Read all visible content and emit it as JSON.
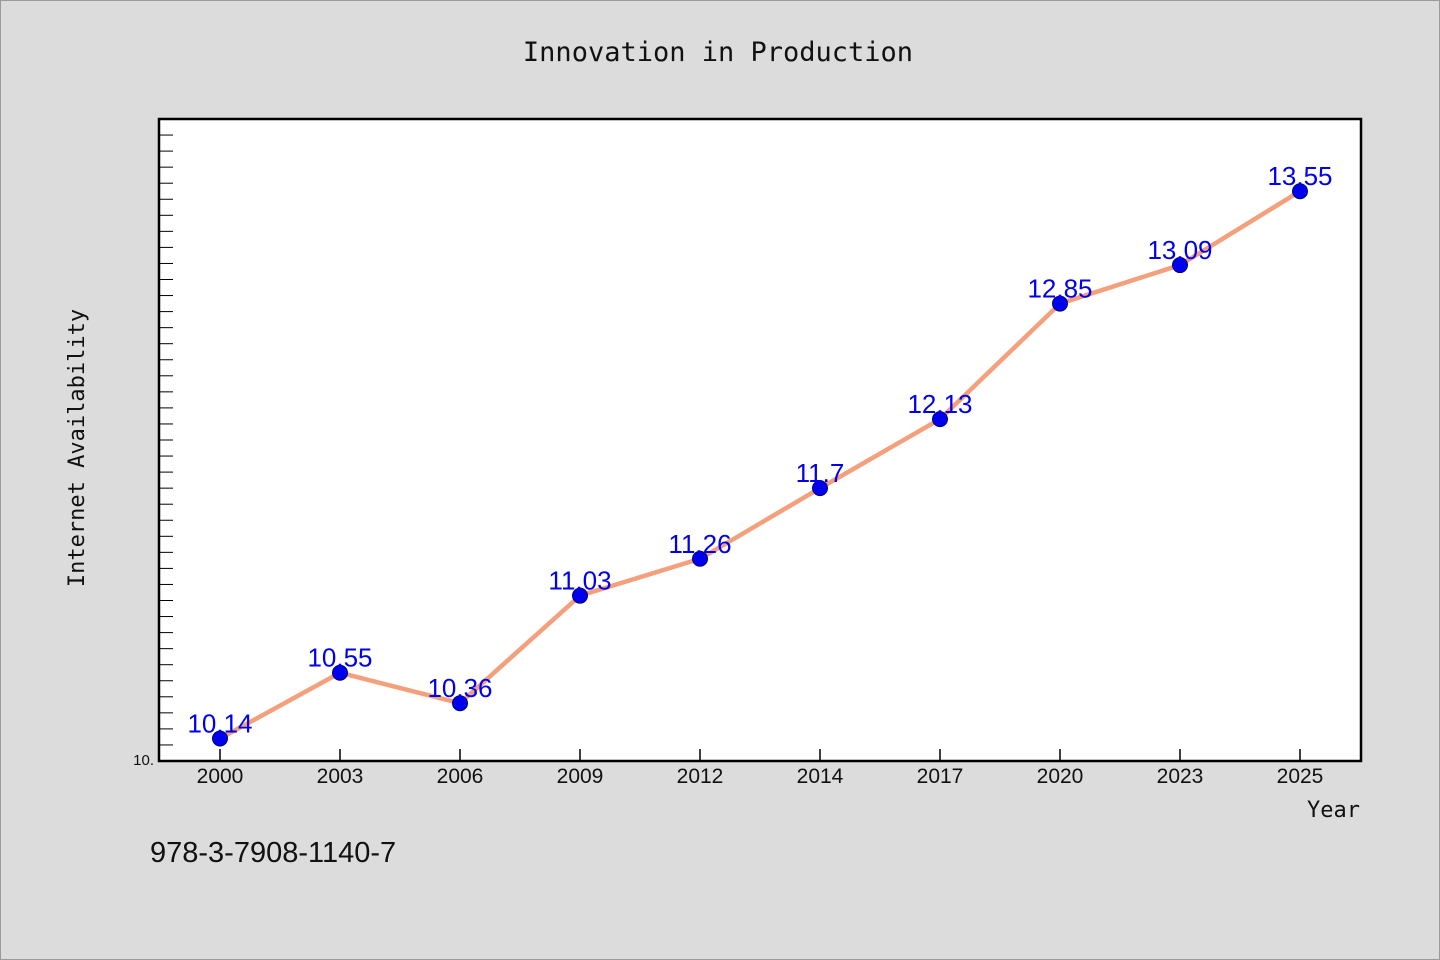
{
  "chart_data": {
    "type": "line",
    "title": "Innovation in Production",
    "xlabel": "Year",
    "ylabel": "Internet Availability",
    "categories": [
      "2000",
      "2003",
      "2006",
      "2009",
      "2012",
      "2014",
      "2017",
      "2020",
      "2023",
      "2025"
    ],
    "series": [
      {
        "values": [
          10.14,
          10.55,
          10.36,
          11.03,
          11.26,
          11.7,
          12.13,
          12.85,
          13.09,
          13.55
        ]
      }
    ],
    "data_labels": [
      "10.14",
      "10.55",
      "10.36",
      "11.03",
      "11.26",
      "11.7",
      "12.13",
      "12.85",
      "13.09",
      "13.55"
    ],
    "y_tick_label": "10.",
    "ylim": [
      10.0,
      14.0
    ],
    "grid": false,
    "legend": "none",
    "colors": {
      "line": "#f4a07c",
      "marker": "#0000ee",
      "data_label": "#0000ee",
      "background": "#dcdcdc",
      "plot_area": "#ffffff"
    }
  },
  "footer_text": "978-3-7908-1140-7"
}
